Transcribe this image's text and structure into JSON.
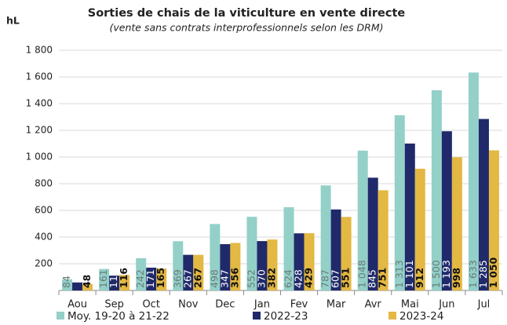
{
  "chart_data": {
    "type": "bar",
    "title": "Sorties de chais de la viticulture en vente directe",
    "subtitle": "(vente sans contrats interprofessionnels selon les DRM)",
    "y_label": "hL",
    "categories": [
      "Aou",
      "Sep",
      "Oct",
      "Nov",
      "Dec",
      "Jan",
      "Fev",
      "Mar",
      "Avr",
      "Mai",
      "Jun",
      "Jul"
    ],
    "series": [
      {
        "name": "Moy. 19-20 à 21-22",
        "color": "#93d0c8",
        "values": [
          84,
          161,
          242,
          369,
          498,
          552,
          624,
          787,
          1048,
          1313,
          1500,
          1633
        ],
        "value_labels": [
          "84",
          "161",
          "242",
          "369",
          "498",
          "552",
          "624",
          "787",
          "1 048",
          "1 313",
          "1 500",
          "1 633"
        ]
      },
      {
        "name": "2022-23",
        "color": "#202a6a",
        "values": [
          60,
          111,
          171,
          267,
          347,
          370,
          428,
          607,
          845,
          1101,
          1193,
          1285
        ],
        "value_labels": [
          null,
          "111",
          "171",
          "267",
          "347",
          "370",
          "428",
          "607",
          "845",
          "1 101",
          "1 193",
          "1 285"
        ]
      },
      {
        "name": "2023-24",
        "color": "#e3b843",
        "values": [
          48,
          116,
          165,
          267,
          356,
          382,
          429,
          551,
          751,
          912,
          998,
          1050
        ],
        "value_labels": [
          "48",
          "116",
          "165",
          "267",
          "356",
          "382",
          "429",
          "551",
          "751",
          "912",
          "998",
          "1 050"
        ]
      }
    ],
    "ylim": [
      0,
      1800
    ],
    "yticks": [
      {
        "value": 200,
        "label": "200"
      },
      {
        "value": 400,
        "label": "400"
      },
      {
        "value": 600,
        "label": "600"
      },
      {
        "value": 800,
        "label": "800"
      },
      {
        "value": 1000,
        "label": "1 000"
      },
      {
        "value": 1200,
        "label": "1 200"
      },
      {
        "value": 1400,
        "label": "1 400"
      },
      {
        "value": 1600,
        "label": "1 600"
      },
      {
        "value": 1800,
        "label": "1 800"
      }
    ],
    "grid": true
  }
}
